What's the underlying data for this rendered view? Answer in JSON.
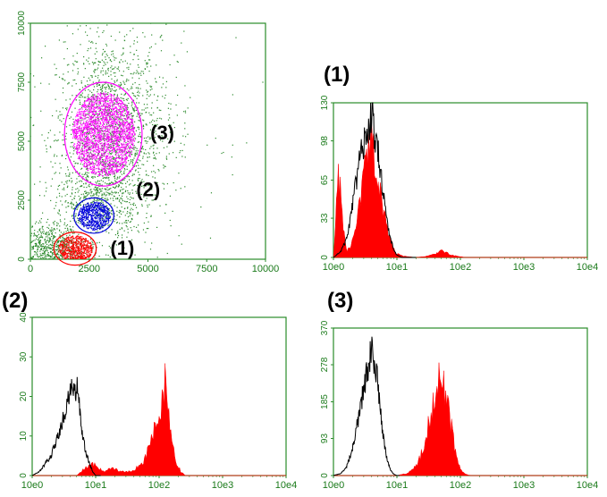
{
  "colors": {
    "axis": "#2a8c2a",
    "tick_text": "#1a7a1a",
    "scatter_points": "#2e8b2e",
    "gate1": "#ff0000",
    "gate2": "#0000dd",
    "gate3": "#ff00ff",
    "histogram_fill": "#ff0000",
    "histogram_outline": "#000000"
  },
  "chart_data": [
    {
      "id": "scatter",
      "type": "scatter",
      "xlim": [
        0,
        10000
      ],
      "ylim": [
        0,
        10000
      ],
      "x_tick_labels": [
        "0",
        "2500",
        "5000",
        "7500",
        "10000"
      ],
      "x_tick_values": [
        0,
        2500,
        5000,
        7500,
        10000
      ],
      "y_tick_labels": [
        "0",
        "2500",
        "5000",
        "7500",
        "10000"
      ],
      "y_tick_values": [
        0,
        2500,
        5000,
        7500,
        10000
      ],
      "gates": [
        {
          "label": "(1)",
          "cx": 1900,
          "cy": 450,
          "rx": 900,
          "ry": 700,
          "color": "#ff0000"
        },
        {
          "label": "(2)",
          "cx": 2700,
          "cy": 1850,
          "rx": 850,
          "ry": 750,
          "color": "#0000dd"
        },
        {
          "label": "(3)",
          "cx": 3100,
          "cy": 5300,
          "rx": 1650,
          "ry": 2200,
          "color": "#ff00ff"
        }
      ]
    },
    {
      "id": "hist1",
      "panel_label": "(1)",
      "type": "area",
      "x_scale": "log",
      "xlim": [
        1,
        10000
      ],
      "ylim": [
        0,
        130
      ],
      "x_tick_labels": [
        "10e0",
        "10e1",
        "10e2",
        "10e3",
        "10e4"
      ],
      "x_tick_values": [
        1,
        10,
        100,
        1000,
        10000
      ],
      "y_tick_labels": [
        "0",
        "33",
        "65",
        "98",
        "130"
      ],
      "y_tick_values": [
        0,
        33,
        65,
        98,
        130
      ],
      "series": [
        {
          "style": "filled",
          "x": [
            1,
            1.2,
            1.4,
            1.6,
            1.9,
            2.2,
            2.6,
            3.0,
            3.5,
            4.0,
            4.6,
            5.2,
            6.0,
            7.0,
            8.5,
            10,
            13,
            20,
            30,
            40,
            50,
            60,
            70,
            90,
            120,
            200
          ],
          "y": [
            0,
            75,
            30,
            5,
            10,
            20,
            45,
            70,
            85,
            95,
            80,
            60,
            40,
            25,
            10,
            3,
            1,
            0,
            1,
            3,
            6,
            4,
            2,
            1,
            0,
            0
          ]
        },
        {
          "style": "outline",
          "x": [
            1,
            1.3,
            1.6,
            1.9,
            2.2,
            2.6,
            3.0,
            3.5,
            4.0,
            4.6,
            5.2,
            6.0,
            7.0,
            8.0,
            9.0,
            10,
            12,
            15,
            20
          ],
          "y": [
            0,
            5,
            15,
            35,
            60,
            82,
            95,
            108,
            120,
            98,
            85,
            55,
            30,
            15,
            6,
            2,
            0,
            0,
            0
          ]
        }
      ]
    },
    {
      "id": "hist2",
      "panel_label": "(2)",
      "type": "area",
      "x_scale": "log",
      "xlim": [
        1,
        10000
      ],
      "ylim": [
        0,
        40
      ],
      "x_tick_labels": [
        "10e0",
        "10e1",
        "10e2",
        "10e3",
        "10e4"
      ],
      "x_tick_values": [
        1,
        10,
        100,
        1000,
        10000
      ],
      "y_tick_labels": [
        "0",
        "10",
        "20",
        "30",
        "40"
      ],
      "y_tick_values": [
        0,
        10,
        20,
        30,
        40
      ],
      "series": [
        {
          "style": "filled",
          "x": [
            1,
            5,
            7,
            9,
            11,
            14,
            18,
            25,
            35,
            45,
            55,
            65,
            75,
            85,
            95,
            105,
            115,
            125,
            135,
            150,
            170,
            190,
            220,
            260
          ],
          "y": [
            0,
            0,
            2,
            3,
            2,
            1,
            2,
            1,
            1,
            2,
            3,
            6,
            9,
            12,
            13,
            16,
            20,
            25,
            18,
            10,
            6,
            3,
            1,
            0
          ]
        },
        {
          "style": "outline",
          "x": [
            1,
            1.3,
            1.6,
            2.0,
            2.4,
            2.8,
            3.2,
            3.6,
            4.0,
            4.3,
            4.6,
            5.0,
            5.5,
            6.0,
            7.0,
            8.0,
            9.0,
            10,
            12
          ],
          "y": [
            0,
            1,
            3,
            5,
            9,
            12,
            15,
            18,
            22,
            25,
            20,
            23,
            18,
            12,
            6,
            3,
            1,
            0,
            0
          ]
        }
      ]
    },
    {
      "id": "hist3",
      "panel_label": "(3)",
      "type": "area",
      "x_scale": "log",
      "xlim": [
        1,
        10000
      ],
      "ylim": [
        0,
        370
      ],
      "x_tick_labels": [
        "10e0",
        "10e1",
        "10e2",
        "10e3",
        "10e4"
      ],
      "x_tick_values": [
        1,
        10,
        100,
        1000,
        10000
      ],
      "y_tick_labels": [
        "0",
        "93",
        "185",
        "278",
        "370"
      ],
      "y_tick_values": [
        0,
        93,
        185,
        278,
        370
      ],
      "series": [
        {
          "style": "filled",
          "x": [
            1,
            10,
            14,
            18,
            22,
            26,
            30,
            35,
            40,
            45,
            50,
            55,
            60,
            70,
            80,
            90,
            100,
            120,
            150
          ],
          "y": [
            0,
            0,
            5,
            15,
            35,
            70,
            110,
            160,
            205,
            240,
            250,
            235,
            200,
            130,
            80,
            40,
            15,
            3,
            0
          ]
        },
        {
          "style": "outline",
          "x": [
            1,
            1.3,
            1.6,
            1.9,
            2.2,
            2.6,
            3.0,
            3.4,
            3.8,
            4.2,
            4.6,
            5.0,
            5.5,
            6.0,
            7.0,
            8.0,
            9.0,
            10,
            11
          ],
          "y": [
            0,
            5,
            20,
            55,
            100,
            160,
            220,
            265,
            300,
            305,
            285,
            230,
            160,
            100,
            40,
            12,
            3,
            0,
            0
          ]
        }
      ]
    }
  ]
}
